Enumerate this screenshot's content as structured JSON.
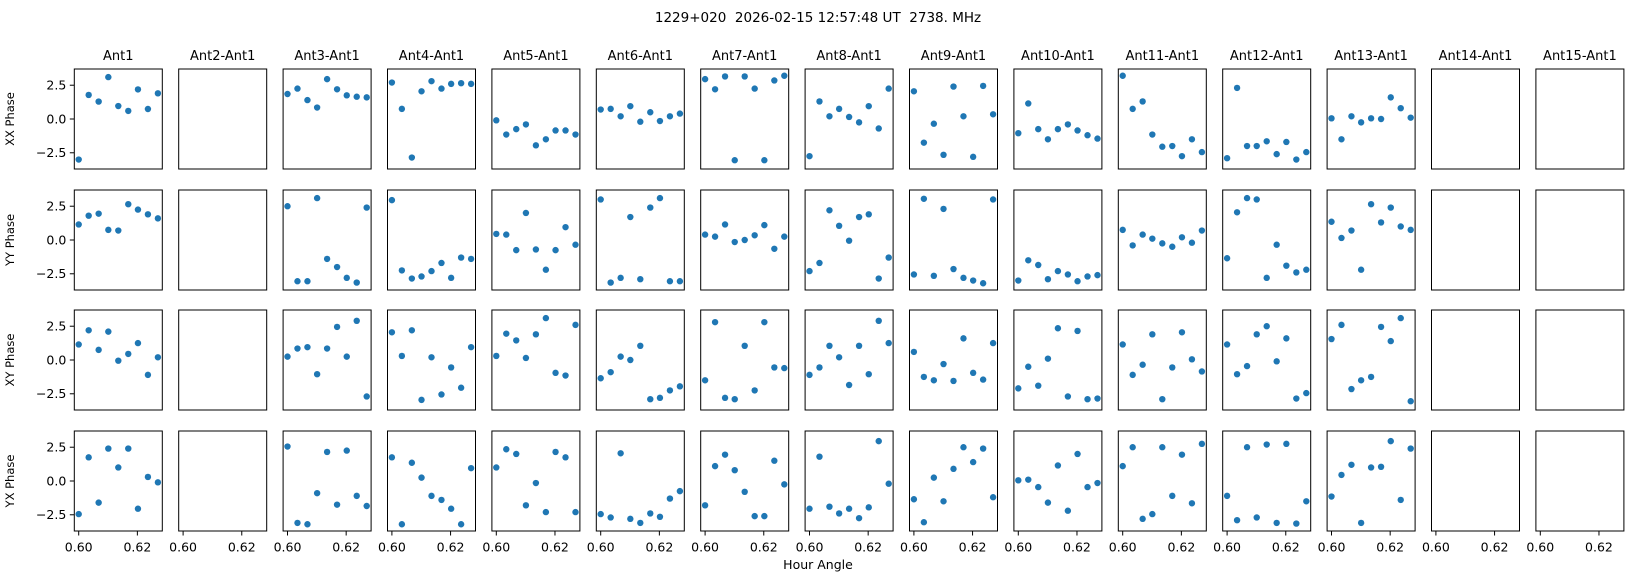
{
  "figure": {
    "title": "1229+020  2026-02-15 12:57:48 UT  2738. MHz",
    "xlabel": "Hour Angle"
  },
  "chart_data": {
    "type": "scatter",
    "title": "1229+020  2026-02-15 12:57:48 UT  2738. MHz",
    "xlabel": "Hour Angle",
    "marker_color": "#1f77b4",
    "grid": false,
    "rows": [
      "XX Phase",
      "YY Phase",
      "XY Phase",
      "YX Phase"
    ],
    "columns": [
      "Ant1",
      "Ant2-Ant1",
      "Ant3-Ant1",
      "Ant4-Ant1",
      "Ant5-Ant1",
      "Ant6-Ant1",
      "Ant7-Ant1",
      "Ant8-Ant1",
      "Ant9-Ant1",
      "Ant10-Ant1",
      "Ant11-Ant1",
      "Ant12-Ant1",
      "Ant13-Ant1",
      "Ant14-Ant1",
      "Ant15-Ant1"
    ],
    "x": [
      0.6,
      0.6034,
      0.6068,
      0.6101,
      0.6135,
      0.6169,
      0.6202,
      0.6236,
      0.627
    ],
    "axes": {
      "xlim": [
        0.5985,
        0.6285
      ],
      "ylim": [
        -3.7,
        3.7
      ],
      "xticks": [
        0.6,
        0.62
      ],
      "xtick_labels": [
        "0.60",
        "0.62"
      ],
      "yticks": [
        2.5,
        0.0,
        -2.5
      ],
      "ytick_labels": [
        "2.5",
        "0.0",
        "−2.5"
      ]
    },
    "values": {
      "XX Phase": [
        [
          -3.0,
          1.78,
          1.29,
          3.1,
          0.96,
          0.6,
          2.19,
          0.74,
          1.9
        ],
        null,
        [
          1.85,
          2.25,
          1.4,
          0.85,
          2.95,
          2.2,
          1.75,
          1.65,
          1.6
        ],
        [
          2.7,
          0.75,
          -2.85,
          2.05,
          2.8,
          2.25,
          2.6,
          2.65,
          2.6
        ],
        [
          -0.1,
          -1.15,
          -0.75,
          -0.4,
          -1.95,
          -1.5,
          -0.85,
          -0.85,
          -1.15
        ],
        [
          0.7,
          0.75,
          0.2,
          0.95,
          -0.2,
          0.5,
          -0.15,
          0.2,
          0.4
        ],
        [
          2.95,
          2.2,
          3.15,
          -3.05,
          3.15,
          2.25,
          -3.05,
          2.85,
          3.2
        ],
        [
          -2.75,
          1.3,
          0.2,
          0.75,
          0.15,
          -0.25,
          0.95,
          -0.7,
          2.25
        ],
        [
          2.05,
          -1.75,
          -0.35,
          -2.65,
          2.4,
          0.2,
          -2.8,
          2.45,
          0.35
        ],
        [
          -1.05,
          1.15,
          -0.75,
          -1.5,
          -0.75,
          -0.4,
          -0.85,
          -1.2,
          -1.45
        ],
        [
          3.2,
          0.75,
          1.3,
          -1.15,
          -2.05,
          -2.0,
          -2.75,
          -1.5,
          -2.45
        ],
        [
          -2.9,
          2.3,
          -2.0,
          -2.0,
          -1.65,
          -2.6,
          -1.7,
          -3.0,
          -2.45
        ],
        [
          0.05,
          -1.5,
          0.2,
          -0.25,
          0.05,
          0.0,
          1.6,
          0.8,
          0.1
        ],
        null,
        null
      ],
      "YY Phase": [
        [
          1.15,
          1.8,
          1.95,
          0.75,
          0.7,
          2.65,
          2.25,
          1.9,
          1.6
        ],
        null,
        [
          2.5,
          -3.05,
          -3.05,
          3.1,
          -1.4,
          -2.0,
          -2.8,
          -3.15,
          2.4
        ],
        [
          2.95,
          -2.25,
          -2.85,
          -2.7,
          -2.3,
          -1.7,
          -2.8,
          -1.3,
          -1.4
        ],
        [
          0.45,
          0.4,
          -0.75,
          2.0,
          -0.7,
          -2.2,
          -0.75,
          0.95,
          -0.35
        ],
        [
          3.0,
          -3.15,
          -2.8,
          1.7,
          -2.9,
          2.4,
          3.1,
          -3.05,
          -3.05
        ],
        [
          0.4,
          0.25,
          1.15,
          -0.15,
          0.0,
          0.35,
          1.1,
          -0.65,
          0.25
        ],
        [
          -2.3,
          -1.7,
          2.2,
          1.05,
          -0.05,
          1.7,
          1.9,
          -2.85,
          -1.3
        ],
        [
          -2.55,
          3.05,
          -2.65,
          2.3,
          -2.15,
          -2.8,
          -3.0,
          -3.2,
          3.0
        ],
        [
          -3.0,
          -1.5,
          -1.85,
          -2.9,
          -2.3,
          -2.55,
          -3.05,
          -2.7,
          -2.6
        ],
        [
          0.75,
          -0.4,
          0.4,
          0.1,
          -0.25,
          -0.5,
          0.2,
          -0.2,
          0.7
        ],
        [
          -1.35,
          2.05,
          3.1,
          3.0,
          -2.8,
          -0.35,
          -1.9,
          -2.4,
          -2.2
        ],
        [
          1.35,
          0.15,
          0.7,
          -2.2,
          2.65,
          1.3,
          2.4,
          1.0,
          0.75
        ],
        null,
        null
      ],
      "XY Phase": [
        [
          1.15,
          2.2,
          0.75,
          2.1,
          -0.05,
          0.45,
          1.25,
          -1.1,
          0.2
        ],
        null,
        [
          0.25,
          0.85,
          0.95,
          -1.05,
          0.85,
          2.45,
          0.25,
          2.9,
          -2.7
        ],
        [
          2.05,
          0.3,
          2.2,
          -2.95,
          0.2,
          -2.55,
          -0.55,
          -2.05,
          0.95
        ],
        [
          0.3,
          1.95,
          1.45,
          0.15,
          1.9,
          3.1,
          -0.95,
          -1.15,
          2.6
        ],
        [
          -1.35,
          -0.9,
          0.25,
          0.0,
          1.05,
          -2.9,
          -2.8,
          -2.25,
          -1.95
        ],
        [
          -1.5,
          2.8,
          -2.8,
          -2.9,
          1.05,
          -2.25,
          2.8,
          -0.55,
          -0.6
        ],
        [
          -1.1,
          -0.55,
          1.05,
          0.2,
          -1.85,
          1.05,
          -1.05,
          2.9,
          1.25
        ],
        [
          0.6,
          -1.25,
          -1.5,
          -0.3,
          -1.55,
          1.6,
          -0.95,
          -1.45,
          1.25
        ],
        [
          -2.1,
          -0.5,
          -1.9,
          0.1,
          2.35,
          -2.7,
          2.15,
          -2.9,
          -2.85
        ],
        [
          1.15,
          -1.1,
          -0.35,
          1.9,
          -2.9,
          -0.55,
          2.05,
          0.05,
          -0.85
        ],
        [
          1.15,
          -1.05,
          -0.45,
          1.9,
          2.5,
          -0.1,
          1.6,
          -2.85,
          -2.45
        ],
        [
          1.55,
          2.6,
          -2.15,
          -1.5,
          -1.25,
          2.45,
          1.4,
          3.1,
          -3.05
        ],
        null,
        null
      ],
      "YX Phase": [
        [
          -2.45,
          1.75,
          -1.6,
          2.4,
          1.0,
          2.4,
          -2.05,
          0.3,
          -0.1
        ],
        null,
        [
          2.55,
          -3.1,
          -3.2,
          -0.9,
          2.15,
          -1.75,
          2.25,
          -1.1,
          -1.85
        ],
        [
          1.75,
          -3.2,
          1.35,
          0.25,
          -1.1,
          -1.4,
          -2.05,
          -3.2,
          0.95
        ],
        [
          1.0,
          2.35,
          2.0,
          -1.8,
          -0.15,
          -2.3,
          2.15,
          1.75,
          -2.3
        ],
        [
          -2.45,
          -2.7,
          2.05,
          -2.8,
          -3.1,
          -2.4,
          -2.65,
          -1.3,
          -0.75
        ],
        [
          -1.8,
          1.1,
          1.95,
          0.8,
          -0.8,
          -2.6,
          -2.6,
          1.5,
          -0.25
        ],
        [
          -2.05,
          1.8,
          -1.9,
          -2.4,
          -2.05,
          -2.75,
          -1.95,
          2.95,
          -0.2
        ],
        [
          -1.35,
          -3.05,
          0.25,
          -1.5,
          0.9,
          2.5,
          1.4,
          2.4,
          -1.2
        ],
        [
          0.05,
          0.1,
          -0.45,
          -1.6,
          1.15,
          -2.2,
          2.0,
          -0.45,
          -0.15
        ],
        [
          1.1,
          2.5,
          -2.8,
          -2.45,
          2.5,
          -1.1,
          1.95,
          -1.65,
          2.75
        ],
        [
          -1.1,
          -2.9,
          2.5,
          -2.7,
          2.7,
          -3.1,
          2.75,
          -3.15,
          -1.5
        ],
        [
          -1.15,
          0.45,
          1.2,
          -3.1,
          1.0,
          1.05,
          2.95,
          -1.4,
          2.4
        ],
        null,
        null
      ]
    }
  }
}
